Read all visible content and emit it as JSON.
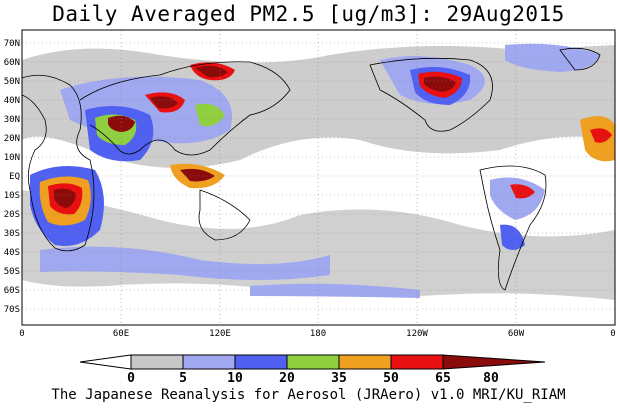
{
  "title": "Daily Averaged PM2.5 [ug/m3]: 29Aug2015",
  "footer": "The Japanese Reanalysis for Aerosol (JRAero) v1.0 MRI/KU_RIAM",
  "map": {
    "lat_labels": [
      "70N",
      "60N",
      "50N",
      "40N",
      "30N",
      "20N",
      "10N",
      "EQ",
      "10S",
      "20S",
      "30S",
      "40S",
      "50S",
      "60S",
      "70S"
    ],
    "lon_labels": [
      "0",
      "60E",
      "120E",
      "180",
      "120W",
      "60W",
      "0"
    ]
  },
  "colorbar": {
    "levels": [
      "0",
      "5",
      "10",
      "20",
      "35",
      "50",
      "65",
      "80"
    ],
    "colors": [
      "#ffffff",
      "#c8c8c8",
      "#a0a8f0",
      "#5060f0",
      "#90d040",
      "#f0a020",
      "#e81010",
      "#8b0a0a"
    ]
  }
}
